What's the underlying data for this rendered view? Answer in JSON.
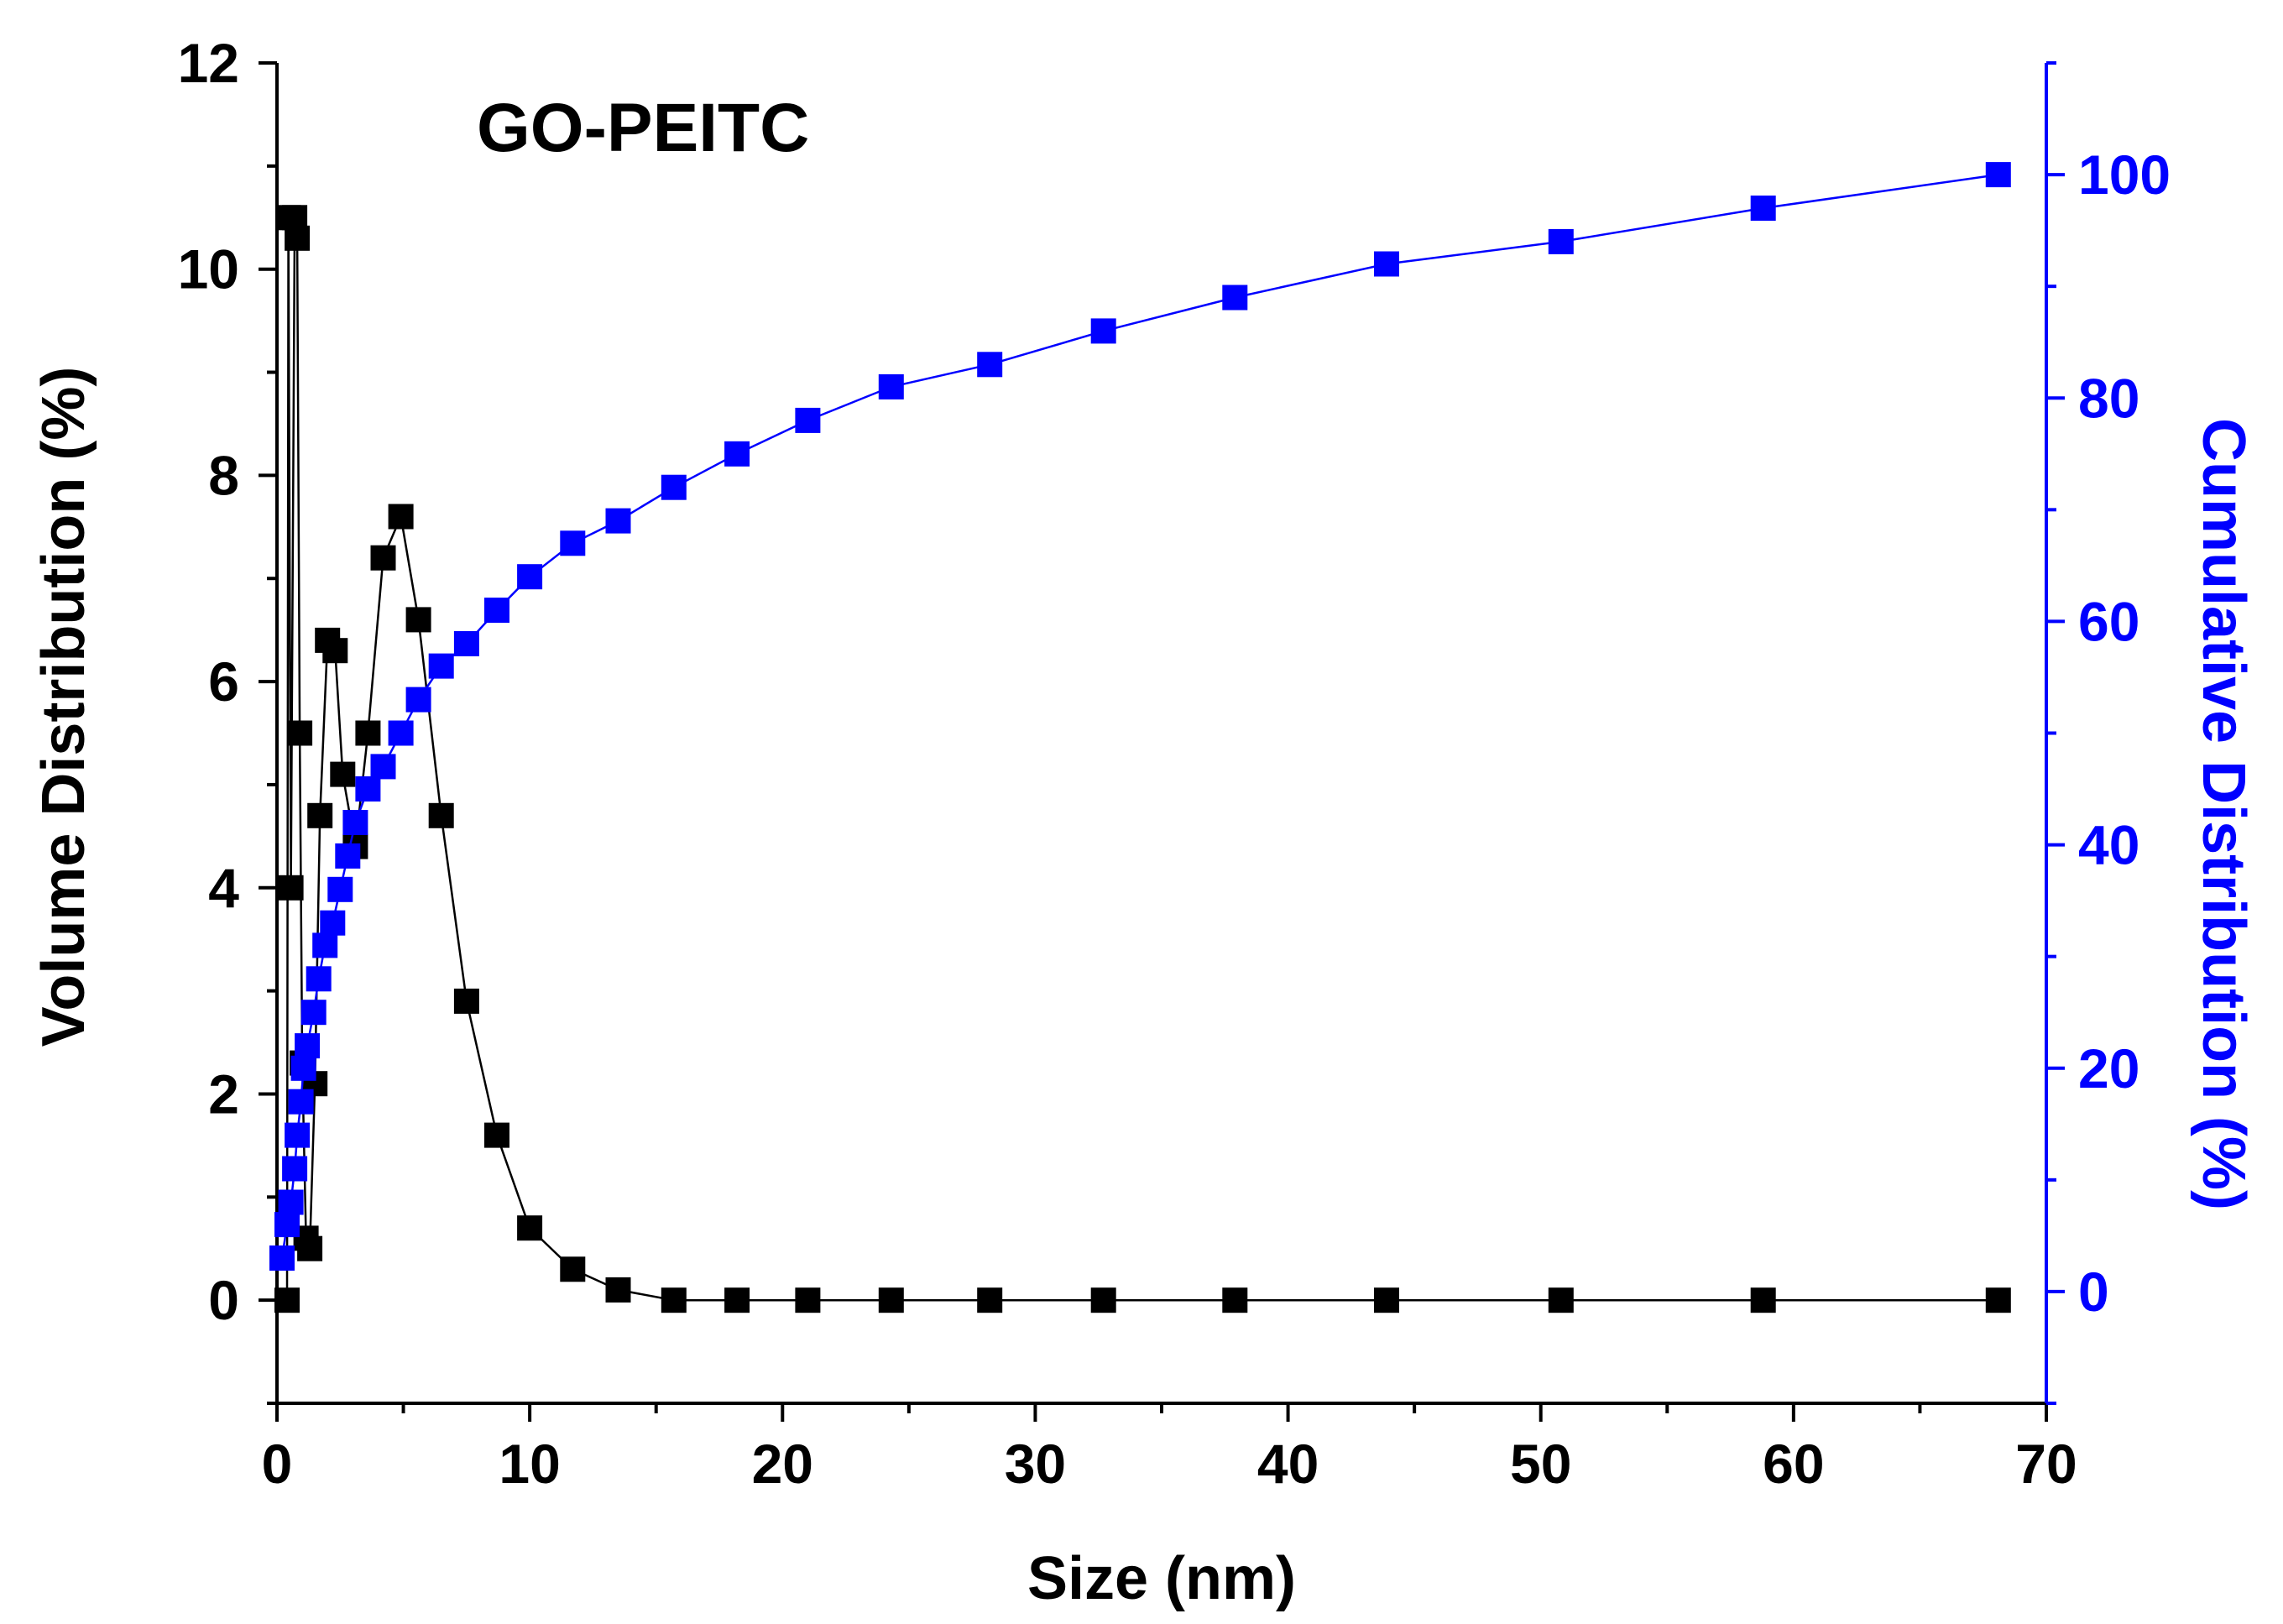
{
  "chart_data": {
    "type": "scatter",
    "title": "GO-PEITC",
    "xlabel": "Size (nm)",
    "ylabel": "Volume Distribution (%)",
    "y2label": "Cumulative Distribution (%)",
    "xlim": [
      0,
      70
    ],
    "ylim": [
      -1,
      12
    ],
    "y2lim": [
      -10,
      110
    ],
    "xticks": [
      0,
      10,
      20,
      30,
      40,
      50,
      60,
      70
    ],
    "yticks": [
      0,
      2,
      4,
      6,
      8,
      10,
      12
    ],
    "y2ticks": [
      0,
      20,
      40,
      60,
      80,
      100
    ],
    "grid": false,
    "colors": {
      "volume": "#000000",
      "cumulative": "#0000ff"
    },
    "series": [
      {
        "name": "Volume Distribution",
        "axis": "left",
        "x": [
          0.4,
          0.45,
          0.55,
          0.7,
          0.8,
          0.9,
          1.0,
          1.15,
          1.3,
          1.5,
          1.7,
          2.0,
          2.3,
          2.6,
          3.1,
          3.6,
          4.2,
          4.9,
          5.6,
          6.5,
          7.5,
          8.7,
          10.0,
          11.7,
          13.5,
          15.7,
          18.2,
          21.0,
          24.3,
          28.2,
          32.7,
          37.9,
          43.9,
          50.8,
          58.8,
          68.1
        ],
        "values": [
          0.0,
          10.5,
          4.0,
          10.5,
          10.3,
          5.5,
          2.3,
          0.6,
          0.5,
          2.1,
          4.7,
          6.4,
          6.3,
          5.1,
          4.4,
          5.5,
          7.2,
          7.6,
          6.6,
          4.7,
          2.9,
          1.6,
          0.7,
          0.3,
          0.1,
          0.0,
          0.0,
          0.0,
          0.0,
          0.0,
          0.0,
          0.0,
          0.0,
          0.0,
          0.0,
          0.0
        ]
      },
      {
        "name": "Cumulative Distribution",
        "axis": "right",
        "x": [
          0.2,
          0.4,
          0.55,
          0.7,
          0.8,
          0.95,
          1.05,
          1.2,
          1.45,
          1.65,
          1.9,
          2.2,
          2.5,
          2.8,
          3.1,
          3.6,
          4.2,
          4.9,
          5.6,
          6.5,
          7.5,
          8.7,
          10.0,
          11.7,
          13.5,
          15.7,
          18.2,
          21.0,
          24.3,
          28.2,
          32.7,
          37.9,
          43.9,
          50.8,
          58.8,
          68.1
        ],
        "values": [
          3,
          6,
          8,
          11,
          14,
          17,
          20,
          22,
          25,
          28,
          31,
          33,
          36,
          39,
          42,
          45,
          47,
          50,
          53,
          56,
          58,
          61,
          64,
          67,
          69,
          72,
          75,
          78,
          81,
          83,
          86,
          89,
          92,
          94,
          97,
          100
        ]
      }
    ]
  }
}
